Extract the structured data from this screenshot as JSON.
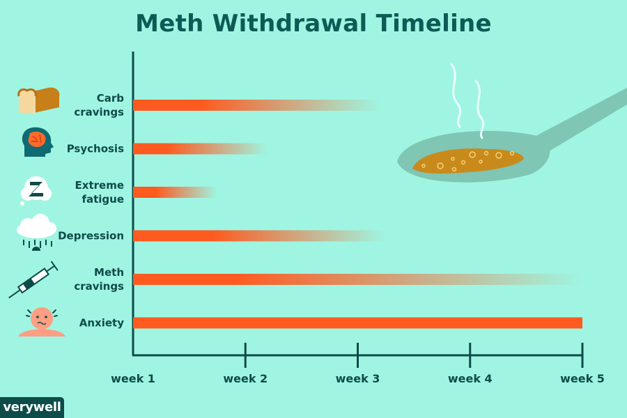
{
  "chart_data": {
    "type": "bar",
    "title": "Meth Withdrawal Timeline",
    "x_ticks": [
      "week 1",
      "week 2",
      "week 3",
      "week 4",
      "week 5"
    ],
    "xlim": [
      1,
      5
    ],
    "xlabel": "",
    "ylabel": "",
    "series": [
      {
        "label": [
          "Carb",
          "cravings"
        ],
        "icon": "bread-icon",
        "solid_until_week": 1.6,
        "fades_out_by_week": 3.2
      },
      {
        "label": [
          "Psychosis"
        ],
        "icon": "head-brain-icon",
        "solid_until_week": 1.3,
        "fades_out_by_week": 2.2
      },
      {
        "label": [
          "Extreme",
          "fatigue"
        ],
        "icon": "sleep-bubble-icon",
        "solid_until_week": 1.2,
        "fades_out_by_week": 1.75
      },
      {
        "label": [
          "Depression"
        ],
        "icon": "rain-cloud-icon",
        "solid_until_week": 1.7,
        "fades_out_by_week": 3.25
      },
      {
        "label": [
          "Meth",
          "cravings"
        ],
        "icon": "syringe-icon",
        "solid_until_week": 1.9,
        "fades_out_by_week": 5.0
      },
      {
        "label": [
          "Anxiety"
        ],
        "icon": "anxious-face-icon",
        "solid_until_week": 5.0,
        "fades_out_by_week": 5.0
      }
    ]
  },
  "colors": {
    "background": "#9ff5e2",
    "bar": "#ff5a1f",
    "axis": "#0e4a4a",
    "title": "#0e5a55",
    "logo_bg": "#0d4c48"
  },
  "brand": {
    "logo": "verywell"
  }
}
